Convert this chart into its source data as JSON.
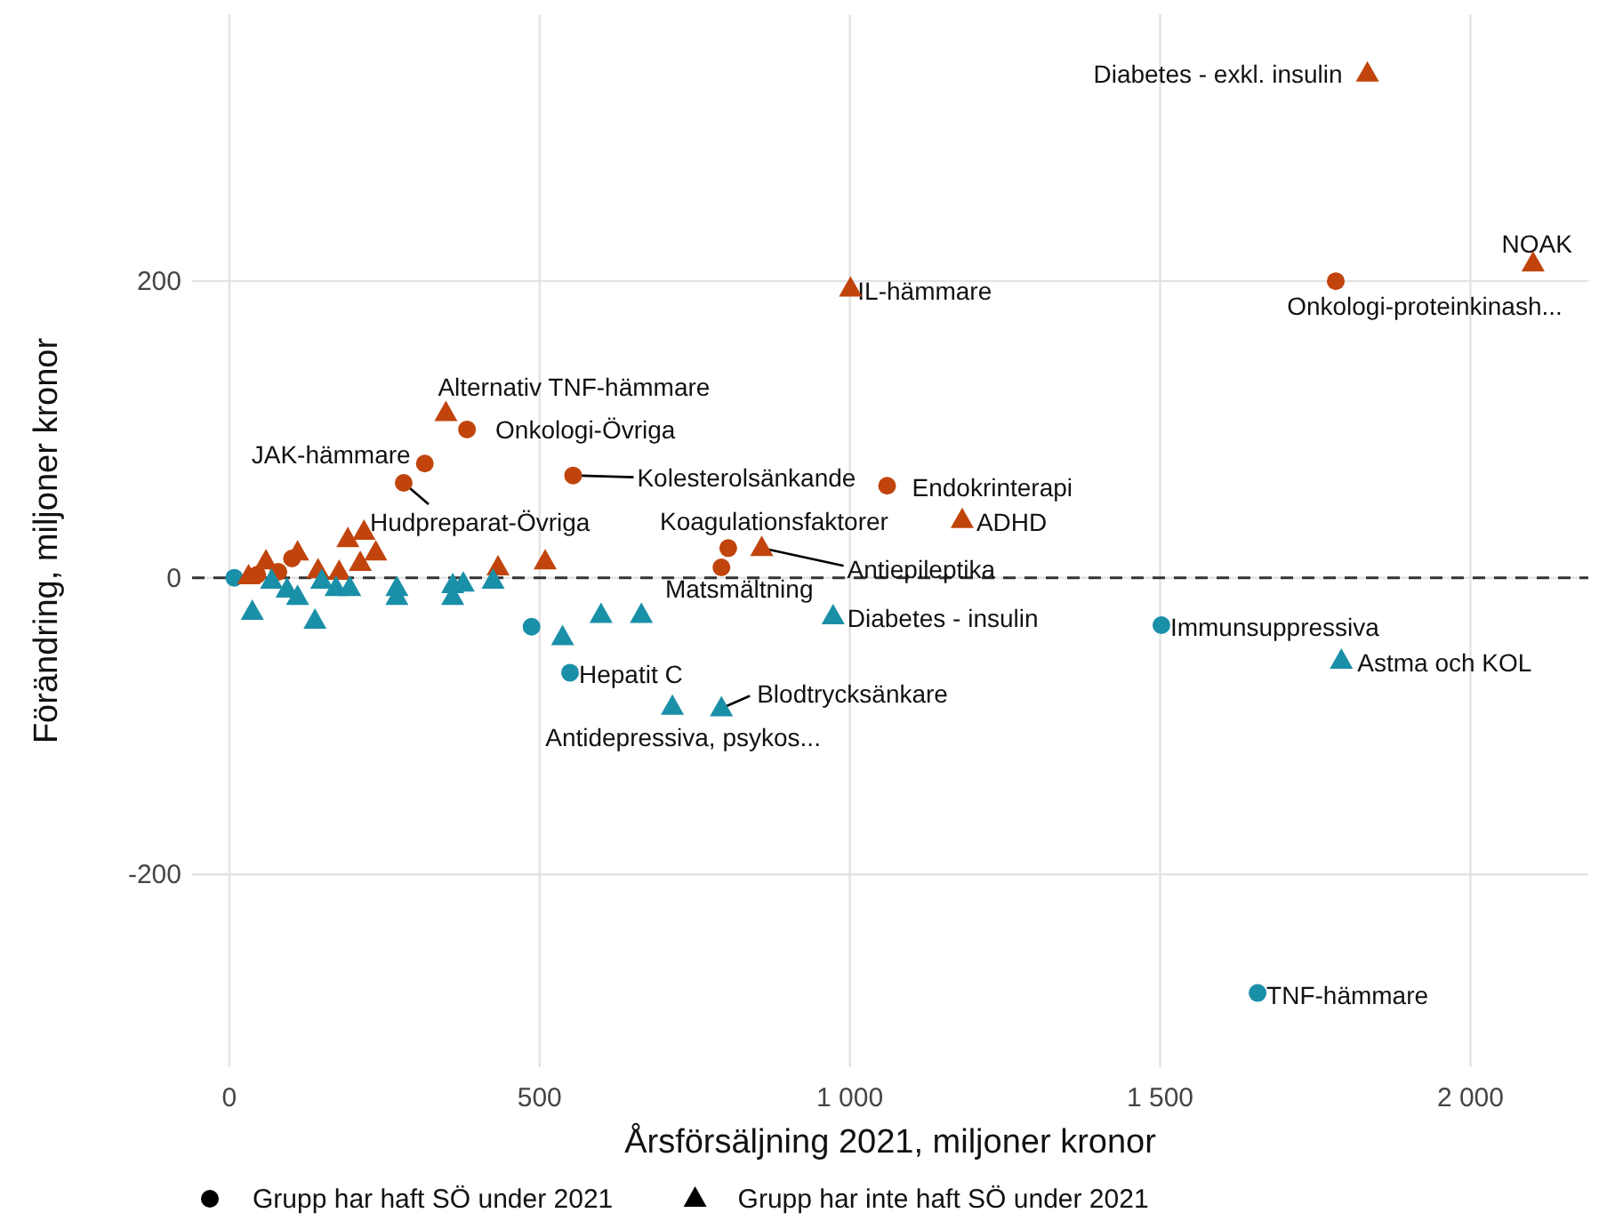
{
  "chart_data": {
    "type": "scatter",
    "xlabel": "Årsförsäljning 2021, miljoner kronor",
    "ylabel": "Förändring, miljoner kronor",
    "xlim": [
      -60,
      2190
    ],
    "ylim": [
      -330,
      380
    ],
    "xticks": [
      0,
      500,
      {
        "value": 1000,
        "label": "1 000"
      },
      {
        "value": 1500,
        "label": "1 500"
      },
      {
        "value": 2000,
        "label": "2 000"
      }
    ],
    "yticks": [
      {
        "value": -200,
        "label": "-200"
      },
      0,
      200
    ],
    "grid": true,
    "ref_lines": [
      {
        "axis": "y",
        "value": 0,
        "line_style": "dashed",
        "color": "#333333"
      }
    ],
    "series": [
      {
        "marker": "circle",
        "x": [
          1783,
          383,
          315,
          554,
          281,
          1060,
          804,
          793,
          1502,
          549,
          1657,
          79,
          101,
          45,
          8,
          487
        ],
        "values": [
          200,
          100,
          77,
          69,
          64,
          62,
          20,
          7,
          -32,
          -64,
          -280,
          4,
          13,
          2,
          0,
          -33
        ],
        "colors": [
          "#c0440c",
          "#c0440c",
          "#c0440c",
          "#c0440c",
          "#c0440c",
          "#c0440c",
          "#c0440c",
          "#c0440c",
          "#1a8fa8",
          "#1a8fa8",
          "#1a8fa8",
          "#c0440c",
          "#c0440c",
          "#c0440c",
          "#1a8fa8",
          "#1a8fa8"
        ]
      },
      {
        "marker": "triangle",
        "x": [
          1834,
          2101,
          1001,
          349,
          1181,
          858,
          973,
          1792,
          793,
          714,
          31,
          59,
          110,
          143,
          177,
          191,
          217,
          236,
          211,
          433,
          509,
          37,
          68,
          93,
          110,
          138,
          149,
          172,
          194,
          270,
          270,
          360,
          360,
          377,
          425,
          537,
          599,
          664
        ],
        "values": [
          340,
          212,
          195,
          111,
          39,
          20,
          -26,
          -56,
          -88,
          -87,
          1,
          11,
          17,
          5,
          4,
          26,
          31,
          17,
          10,
          7,
          11,
          -23,
          -2,
          -8,
          -13,
          -29,
          -2,
          -7,
          -7,
          -7,
          -13,
          -5,
          -13,
          -4,
          -2,
          -40,
          -25,
          -25
        ],
        "colors": [
          "#c0440c",
          "#c0440c",
          "#c0440c",
          "#c0440c",
          "#c0440c",
          "#c0440c",
          "#1a8fa8",
          "#1a8fa8",
          "#1a8fa8",
          "#1a8fa8",
          "#c0440c",
          "#c0440c",
          "#c0440c",
          "#c0440c",
          "#c0440c",
          "#c0440c",
          "#c0440c",
          "#c0440c",
          "#c0440c",
          "#c0440c",
          "#c0440c",
          "#1a8fa8",
          "#1a8fa8",
          "#1a8fa8",
          "#1a8fa8",
          "#1a8fa8",
          "#1a8fa8",
          "#1a8fa8",
          "#1a8fa8",
          "#1a8fa8",
          "#1a8fa8",
          "#1a8fa8",
          "#1a8fa8",
          "#1a8fa8",
          "#1a8fa8",
          "#1a8fa8",
          "#1a8fa8",
          "#1a8fa8"
        ]
      }
    ],
    "annotations": [
      {
        "text": "Diabetes - exkl. insulin",
        "x": 1834,
        "y": 340
      },
      {
        "text": "NOAK",
        "x": 2101,
        "y": 212
      },
      {
        "text": "Onkologi-proteinkinash...",
        "x": 1783,
        "y": 200
      },
      {
        "text": "IL-hämmare",
        "x": 1001,
        "y": 195
      },
      {
        "text": "Alternativ TNF-hämmare",
        "x": 349,
        "y": 111
      },
      {
        "text": "Onkologi-Övriga",
        "x": 383,
        "y": 100
      },
      {
        "text": "JAK-hämmare",
        "x": 315,
        "y": 77
      },
      {
        "text": "Kolesterolsänkande",
        "x": 554,
        "y": 69
      },
      {
        "text": "Hudpreparat-Övriga",
        "x": 281,
        "y": 64
      },
      {
        "text": "Endokrinterapi",
        "x": 1060,
        "y": 62
      },
      {
        "text": "ADHD",
        "x": 1181,
        "y": 39
      },
      {
        "text": "Koagulationsfaktorer",
        "x": 804,
        "y": 20
      },
      {
        "text": "Antiepileptika",
        "x": 858,
        "y": 20
      },
      {
        "text": "Matsmältning",
        "x": 793,
        "y": 7
      },
      {
        "text": "Diabetes - insulin",
        "x": 973,
        "y": -26
      },
      {
        "text": "Immunsuppressiva",
        "x": 1502,
        "y": -32
      },
      {
        "text": "Astma och KOL",
        "x": 1792,
        "y": -56
      },
      {
        "text": "Hepatit C",
        "x": 549,
        "y": -64
      },
      {
        "text": "Blodtrycksänkare",
        "x": 793,
        "y": -88
      },
      {
        "text": "Antidepressiva, psykos...",
        "x": 714,
        "y": -87
      },
      {
        "text": "TNF-hämmare",
        "x": 1657,
        "y": -280
      },
      "Grupp har haft SÖ under 2021",
      "Grupp har inte haft SÖ under 2021"
    ]
  }
}
